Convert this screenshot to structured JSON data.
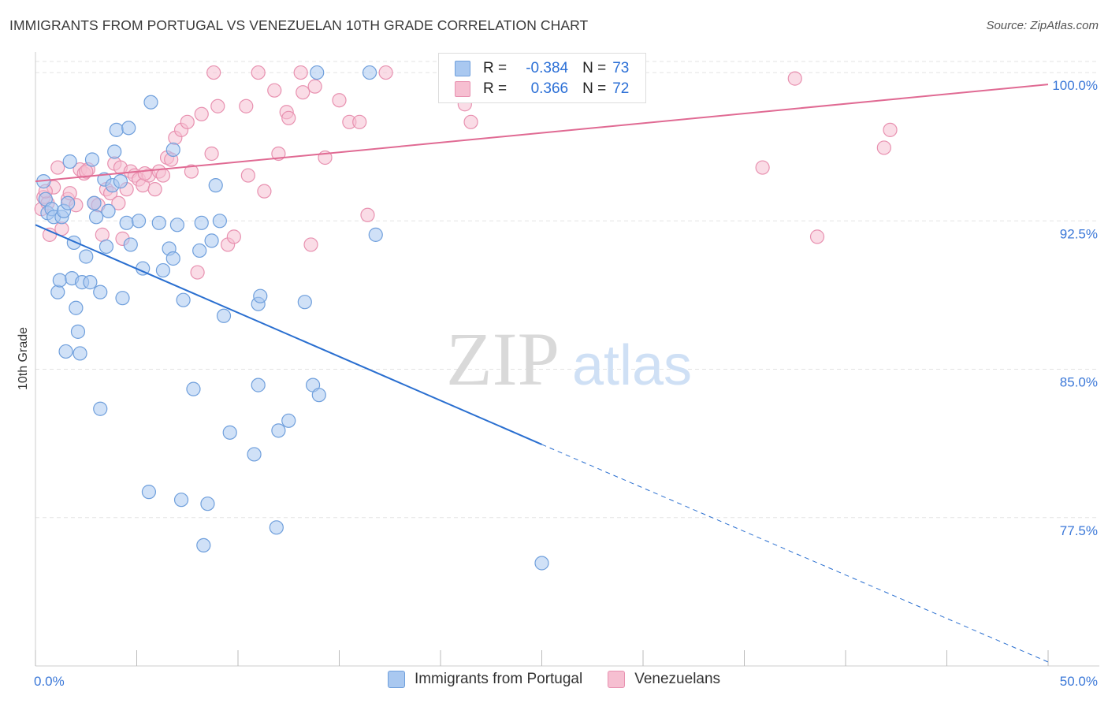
{
  "title": "IMMIGRANTS FROM PORTUGAL VS VENEZUELAN 10TH GRADE CORRELATION CHART",
  "source": "Source: ZipAtlas.com",
  "watermark": {
    "zip": "ZIP",
    "atlas": "atlas"
  },
  "colors": {
    "blue_fill": "#a9c8f0",
    "blue_stroke": "#6f9fdc",
    "blue_line": "#2a6fd0",
    "pink_fill": "#f6bfd1",
    "pink_stroke": "#e891b0",
    "pink_line": "#e06a93",
    "tick_label": "#3b78d8",
    "grid": "#e3e3e3"
  },
  "legend": {
    "rows": [
      {
        "r_label": "R =",
        "r_value": "-0.384",
        "n_label": "N =",
        "n_value": "73",
        "swatch_fill": "#a9c8f0",
        "swatch_stroke": "#6f9fdc"
      },
      {
        "r_label": "R =",
        "r_value": "0.366",
        "n_label": "N =",
        "n_value": "72",
        "swatch_fill": "#f6bfd1",
        "swatch_stroke": "#e891b0"
      }
    ]
  },
  "bottom_legend": [
    {
      "label": "Immigrants from Portugal",
      "swatch_fill": "#a9c8f0",
      "swatch_stroke": "#6f9fdc"
    },
    {
      "label": "Venezuelans",
      "swatch_fill": "#f6bfd1",
      "swatch_stroke": "#e891b0"
    }
  ],
  "chart_data": {
    "type": "scatter",
    "title": "IMMIGRANTS FROM PORTUGAL VS VENEZUELAN 10TH GRADE CORRELATION CHART",
    "xlabel": "",
    "ylabel": "10th Grade",
    "xlim": [
      0,
      50
    ],
    "ylim": [
      70,
      100.8
    ],
    "x_tick_labels": [
      {
        "value": 0,
        "label": "0.0%"
      },
      {
        "value": 50,
        "label": "50.0%"
      }
    ],
    "y_tick_labels": [
      {
        "value": 100,
        "label": "100.0%"
      },
      {
        "value": 92.5,
        "label": "92.5%"
      },
      {
        "value": 85,
        "label": "85.0%"
      },
      {
        "value": 77.5,
        "label": "77.5%"
      }
    ],
    "x_minor_ticks": [
      0,
      5,
      10,
      15,
      20,
      25,
      30,
      35,
      40,
      45,
      50
    ],
    "grid": true,
    "legend_position": "top-center",
    "series": [
      {
        "name": "Immigrants from Portugal",
        "R": -0.384,
        "N": 73,
        "trend": {
          "x0": 0,
          "y0": 92.3,
          "x1": 25,
          "y1": 81.2,
          "dash_to_x": 50,
          "dash_to_y": 70.2
        },
        "points": [
          [
            0.4,
            94.5
          ],
          [
            0.6,
            92.9
          ],
          [
            0.5,
            93.6
          ],
          [
            0.8,
            93.1
          ],
          [
            0.9,
            92.7
          ],
          [
            1.1,
            88.9
          ],
          [
            1.2,
            89.5
          ],
          [
            1.3,
            92.7
          ],
          [
            1.4,
            93.0
          ],
          [
            1.5,
            85.9
          ],
          [
            1.6,
            93.4
          ],
          [
            1.7,
            95.5
          ],
          [
            1.8,
            89.6
          ],
          [
            1.9,
            91.4
          ],
          [
            2.0,
            88.1
          ],
          [
            2.1,
            86.9
          ],
          [
            2.2,
            85.8
          ],
          [
            2.3,
            89.4
          ],
          [
            2.5,
            90.7
          ],
          [
            2.7,
            89.4
          ],
          [
            2.8,
            95.6
          ],
          [
            2.9,
            93.4
          ],
          [
            3.0,
            92.7
          ],
          [
            3.2,
            88.9
          ],
          [
            3.2,
            83.0
          ],
          [
            3.4,
            94.6
          ],
          [
            3.5,
            91.2
          ],
          [
            3.6,
            93.0
          ],
          [
            3.8,
            94.3
          ],
          [
            3.9,
            96.0
          ],
          [
            4.0,
            97.1
          ],
          [
            4.2,
            94.5
          ],
          [
            4.3,
            88.6
          ],
          [
            4.5,
            92.4
          ],
          [
            4.6,
            97.2
          ],
          [
            4.7,
            91.3
          ],
          [
            5.1,
            92.5
          ],
          [
            5.3,
            90.1
          ],
          [
            5.6,
            78.8
          ],
          [
            5.7,
            98.5
          ],
          [
            6.1,
            92.4
          ],
          [
            6.3,
            90.0
          ],
          [
            6.6,
            91.1
          ],
          [
            6.8,
            90.6
          ],
          [
            6.8,
            96.1
          ],
          [
            7.0,
            92.3
          ],
          [
            7.2,
            78.4
          ],
          [
            7.3,
            88.5
          ],
          [
            7.8,
            84.0
          ],
          [
            8.1,
            91.0
          ],
          [
            8.2,
            92.4
          ],
          [
            8.3,
            76.1
          ],
          [
            8.5,
            78.2
          ],
          [
            8.7,
            91.5
          ],
          [
            8.9,
            94.3
          ],
          [
            9.1,
            92.5
          ],
          [
            9.3,
            87.7
          ],
          [
            9.6,
            81.8
          ],
          [
            10.8,
            80.7
          ],
          [
            11.0,
            84.2
          ],
          [
            11.0,
            88.3
          ],
          [
            11.1,
            88.7
          ],
          [
            11.9,
            77.0
          ],
          [
            12.0,
            81.9
          ],
          [
            12.5,
            82.4
          ],
          [
            13.3,
            88.4
          ],
          [
            13.7,
            84.2
          ],
          [
            14.0,
            83.7
          ],
          [
            13.9,
            100.0
          ],
          [
            16.5,
            100.0
          ],
          [
            16.8,
            91.8
          ],
          [
            25.0,
            75.2
          ]
        ]
      },
      {
        "name": "Venezuelans",
        "R": 0.366,
        "N": 72,
        "trend": {
          "x0": 0,
          "y0": 94.5,
          "x1": 50,
          "y1": 99.4
        },
        "points": [
          [
            0.3,
            93.1
          ],
          [
            0.4,
            93.7
          ],
          [
            0.6,
            93.4
          ],
          [
            0.7,
            91.8
          ],
          [
            0.9,
            94.2
          ],
          [
            1.1,
            95.2
          ],
          [
            1.3,
            92.1
          ],
          [
            1.6,
            93.6
          ],
          [
            1.7,
            93.9
          ],
          [
            2.0,
            93.3
          ],
          [
            2.2,
            95.1
          ],
          [
            2.4,
            94.9
          ],
          [
            2.6,
            95.1
          ],
          [
            2.9,
            93.4
          ],
          [
            3.1,
            93.3
          ],
          [
            3.3,
            91.8
          ],
          [
            3.5,
            94.1
          ],
          [
            3.7,
            93.9
          ],
          [
            3.9,
            95.4
          ],
          [
            4.1,
            93.4
          ],
          [
            4.2,
            95.2
          ],
          [
            4.3,
            91.6
          ],
          [
            4.5,
            94.1
          ],
          [
            4.7,
            95.0
          ],
          [
            4.9,
            94.8
          ],
          [
            5.1,
            94.6
          ],
          [
            5.3,
            94.3
          ],
          [
            5.6,
            94.8
          ],
          [
            5.9,
            94.1
          ],
          [
            6.1,
            95.0
          ],
          [
            6.3,
            94.8
          ],
          [
            6.5,
            95.7
          ],
          [
            6.7,
            95.6
          ],
          [
            6.9,
            96.7
          ],
          [
            7.2,
            97.1
          ],
          [
            7.5,
            97.5
          ],
          [
            7.7,
            95.0
          ],
          [
            8.0,
            89.9
          ],
          [
            8.2,
            97.9
          ],
          [
            8.7,
            95.9
          ],
          [
            8.8,
            100.0
          ],
          [
            9.0,
            98.3
          ],
          [
            9.5,
            91.3
          ],
          [
            9.8,
            91.7
          ],
          [
            10.4,
            98.3
          ],
          [
            10.5,
            94.8
          ],
          [
            11.0,
            100.0
          ],
          [
            11.3,
            94.0
          ],
          [
            11.8,
            99.1
          ],
          [
            12.0,
            95.9
          ],
          [
            12.4,
            98.0
          ],
          [
            12.5,
            97.7
          ],
          [
            13.1,
            100.0
          ],
          [
            13.2,
            99.0
          ],
          [
            13.6,
            91.3
          ],
          [
            13.8,
            99.3
          ],
          [
            14.3,
            95.7
          ],
          [
            15.0,
            98.6
          ],
          [
            15.5,
            97.5
          ],
          [
            16.0,
            97.5
          ],
          [
            16.4,
            92.8
          ],
          [
            17.3,
            100.0
          ],
          [
            21.2,
            98.4
          ],
          [
            21.5,
            97.5
          ],
          [
            35.9,
            95.2
          ],
          [
            37.5,
            99.7
          ],
          [
            38.6,
            91.7
          ],
          [
            41.9,
            96.2
          ],
          [
            42.2,
            97.1
          ],
          [
            0.5,
            94.0
          ],
          [
            2.5,
            95.0
          ],
          [
            5.4,
            94.9
          ]
        ]
      }
    ]
  }
}
